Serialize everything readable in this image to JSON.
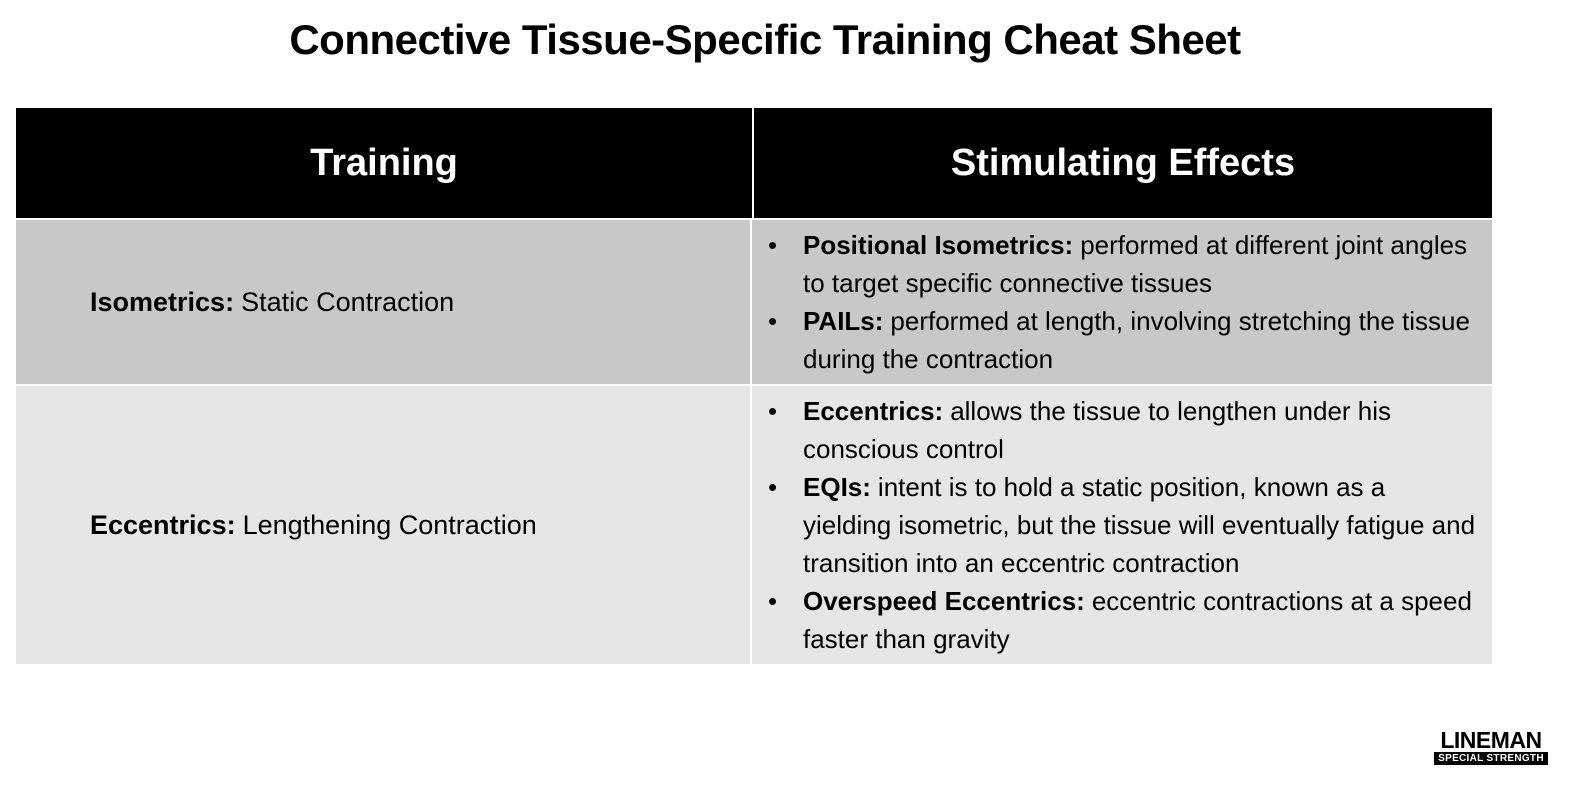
{
  "title": "Connective Tissue-Specific Training Cheat Sheet",
  "table": {
    "headers": [
      "Training",
      "Stimulating Effects"
    ],
    "rows": [
      {
        "training": {
          "term": "Isometrics:",
          "description": "Static Contraction"
        },
        "effects": [
          {
            "term": "Positional Isometrics:",
            "text": "performed at different joint angles to target specific connective tissues"
          },
          {
            "term": "PAILs:",
            "text": "performed at length, involving stretching the tissue during the contraction"
          }
        ]
      },
      {
        "training": {
          "term": "Eccentrics:",
          "description": "Lengthening Contraction"
        },
        "effects": [
          {
            "term": "Eccentrics:",
            "text": "allows the tissue to lengthen under his conscious control"
          },
          {
            "term": "EQIs:",
            "text": "intent is to hold a static position, known as a yielding isometric, but the tissue will eventually fatigue and transition into an eccentric contraction"
          },
          {
            "term": "Overspeed Eccentrics:",
            "text": "eccentric contractions at a speed faster than gravity"
          }
        ]
      }
    ]
  },
  "logo": {
    "name": "LINEMAN",
    "tagline": "SPECIAL STRENGTH"
  }
}
